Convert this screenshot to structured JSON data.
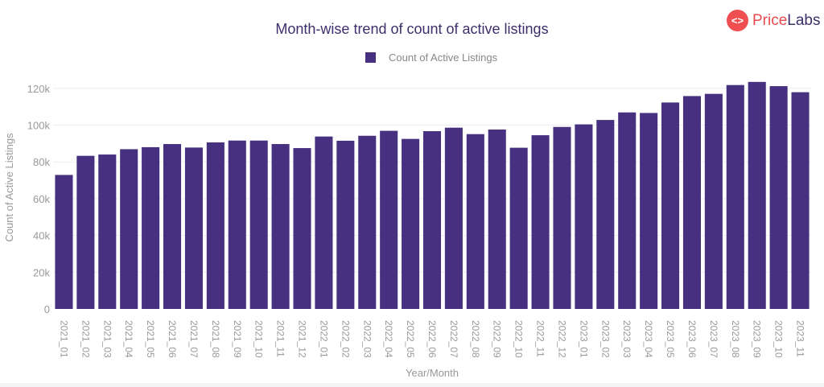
{
  "logo": {
    "part1": "Price",
    "part2": "Labs"
  },
  "chart_data": {
    "type": "bar",
    "title": "Month-wise trend of count of active listings",
    "xlabel": "Year/Month",
    "ylabel": "Count of Active Listings",
    "ylim": [
      0,
      125000
    ],
    "yticks": [
      0,
      20000,
      40000,
      60000,
      80000,
      100000,
      120000
    ],
    "ytick_labels": [
      "0",
      "20k",
      "40k",
      "60k",
      "80k",
      "100k",
      "120k"
    ],
    "grid": true,
    "legend_position": "top-center",
    "color": "#47307f",
    "series": [
      {
        "name": "Count of Active Listings",
        "values": [
          72900,
          83300,
          84000,
          86900,
          88000,
          89700,
          87800,
          90600,
          91600,
          91600,
          89700,
          87500,
          93800,
          91500,
          94200,
          96900,
          92500,
          96700,
          98600,
          95100,
          97600,
          87700,
          94500,
          99000,
          100400,
          102800,
          106900,
          106600,
          112300,
          115800,
          117000,
          121800,
          123500,
          121200,
          117900
        ]
      }
    ],
    "categories": [
      "2021_01",
      "2021_02",
      "2021_03",
      "2021_04",
      "2021_05",
      "2021_06",
      "2021_07",
      "2021_08",
      "2021_09",
      "2021_10",
      "2021_11",
      "2021_12",
      "2022_01",
      "2022_02",
      "2022_03",
      "2022_04",
      "2022_05",
      "2022_06",
      "2022_07",
      "2022_08",
      "2022_09",
      "2022_10",
      "2022_11",
      "2022_12",
      "2023_01",
      "2023_02",
      "2023_03",
      "2023_04",
      "2023_05",
      "2023_06",
      "2023_07",
      "2023_08",
      "2023_09",
      "2023_10",
      "2023_11"
    ]
  }
}
